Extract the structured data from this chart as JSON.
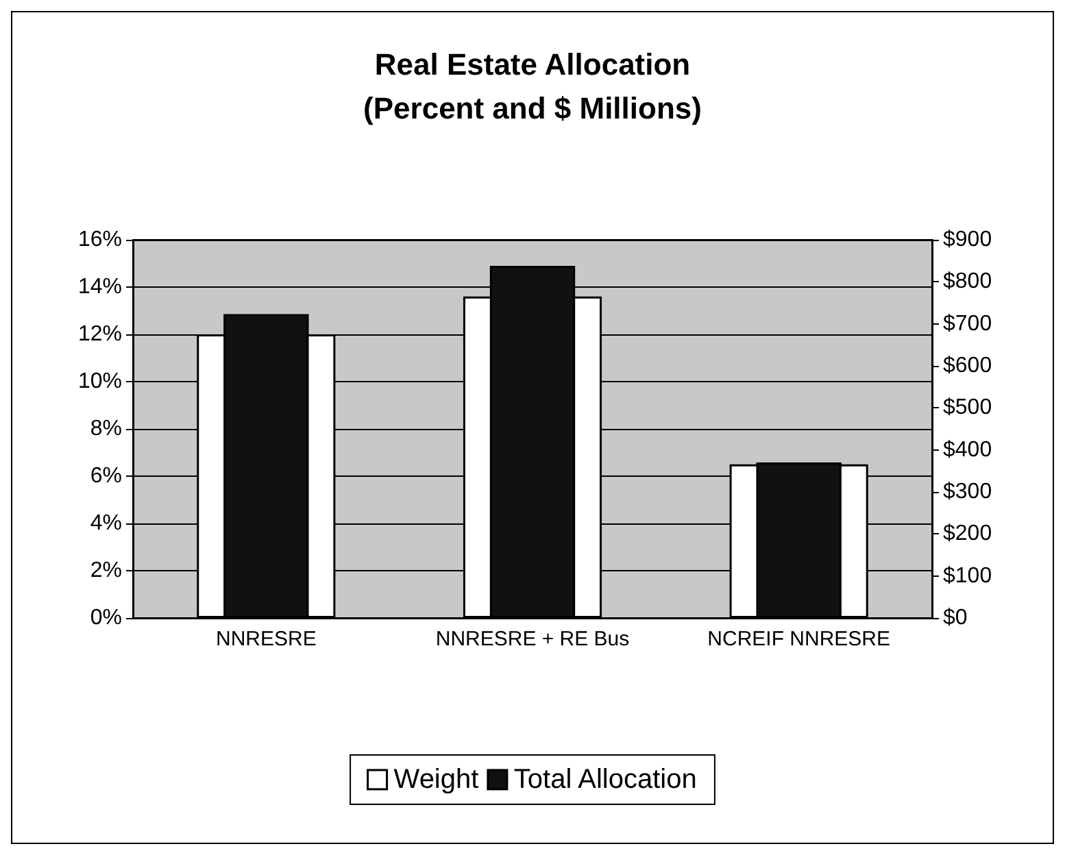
{
  "chart_data": {
    "type": "bar",
    "title": "Real Estate Allocation",
    "subtitle": "(Percent and $ Millions)",
    "categories": [
      "NNRESRE",
      "NNRESRE + RE Bus",
      "NCREIF NNRESRE"
    ],
    "series": [
      {
        "name": "Weight",
        "color": "#ffffff",
        "values": [
          12,
          13.6,
          6.5
        ]
      },
      {
        "name": "Total Allocation",
        "color": "#111111",
        "values": [
          723,
          838,
          370
        ],
        "axis": "y2"
      }
    ],
    "ylim": [
      0,
      16
    ],
    "yticks": [
      {
        "value": 0,
        "label": "0%"
      },
      {
        "value": 2,
        "label": "2%"
      },
      {
        "value": 4,
        "label": "4%"
      },
      {
        "value": 6,
        "label": "6%"
      },
      {
        "value": 8,
        "label": "8%"
      },
      {
        "value": 10,
        "label": "10%"
      },
      {
        "value": 12,
        "label": "12%"
      },
      {
        "value": 14,
        "label": "14%"
      },
      {
        "value": 16,
        "label": "16%"
      }
    ],
    "y2lim": [
      0,
      900
    ],
    "y2ticks": [
      {
        "value": 0,
        "label": "$0"
      },
      {
        "value": 100,
        "label": "$100"
      },
      {
        "value": 200,
        "label": "$200"
      },
      {
        "value": 300,
        "label": "$300"
      },
      {
        "value": 400,
        "label": "$400"
      },
      {
        "value": 500,
        "label": "$500"
      },
      {
        "value": 600,
        "label": "$600"
      },
      {
        "value": 700,
        "label": "$700"
      },
      {
        "value": 800,
        "label": "$800"
      },
      {
        "value": 900,
        "label": "$900"
      }
    ],
    "grid": "y",
    "legend": "bottom"
  }
}
